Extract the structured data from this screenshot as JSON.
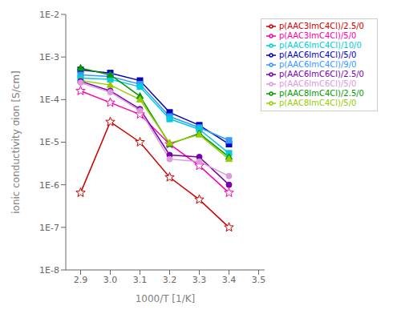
{
  "chart_data": {
    "type": "line",
    "title": null,
    "xlabel": "1000/T [1/K]",
    "ylabel": "ionic conductivity σion [S/cm]",
    "x": [
      2.9,
      3.0,
      3.1,
      3.2,
      3.3,
      3.4
    ],
    "series": [
      {
        "name": "p(AAC3ImC4Cl)/2.5/0",
        "color": "#cc0000",
        "marker": "star",
        "values": [
          6.5e-07,
          3e-05,
          1e-05,
          1.5e-06,
          4.5e-07,
          1e-07
        ]
      },
      {
        "name": "p(AAC3ImC4Cl)/5/0",
        "color": "#ff00aa",
        "marker": "star",
        "values": [
          0.00016,
          8.5e-05,
          4.5e-05,
          9e-06,
          2.8e-06,
          6.5e-07
        ]
      },
      {
        "name": "p(AAC6ImC4Cl)/5/0",
        "color": "#0000bb",
        "marker": "square",
        "values": [
          0.0005,
          0.00042,
          0.00028,
          5e-05,
          2.5e-05,
          9e-06
        ]
      },
      {
        "name": "p(AAC6ImC4Cl)/9/0",
        "color": "#3399ff",
        "marker": "square",
        "values": [
          0.00038,
          0.00035,
          0.00023,
          4e-05,
          2.2e-05,
          1.1e-05
        ]
      },
      {
        "name": "p(AAC6ImC4Cl)/10/0",
        "color": "#00ccdd",
        "marker": "square",
        "values": [
          0.00032,
          0.0003,
          0.0002,
          3.5e-05,
          2e-05,
          5.5e-06
        ]
      },
      {
        "name": "p(AAC8ImC4Cl)/2.5/0",
        "color": "#009900",
        "marker": "triangle",
        "values": [
          0.00055,
          0.00038,
          0.00012,
          9e-06,
          1.6e-05,
          4.5e-06
        ]
      },
      {
        "name": "p(AAC8ImC4Cl)/5/0",
        "color": "#99cc00",
        "marker": "triangle",
        "values": [
          0.00028,
          0.00022,
          0.0001,
          9.5e-06,
          1.5e-05,
          4e-06
        ]
      },
      {
        "name": "p(AAC6ImC6Cl)/2.5/0",
        "color": "#7700aa",
        "marker": "circle",
        "values": [
          0.00027,
          0.00016,
          6e-05,
          5e-06,
          4.5e-06,
          1e-06
        ]
      },
      {
        "name": "p(AAC6ImC6Cl)/5/0",
        "color": "#dd99dd",
        "marker": "circle",
        "values": [
          0.00025,
          0.00015,
          5.5e-05,
          4e-06,
          3.5e-06,
          1.6e-06
        ]
      }
    ],
    "xlim": [
      2.85,
      3.52
    ],
    "xticks": [
      2.9,
      {
        "value": 3.0,
        "label": "3.0"
      },
      3.1,
      3.2,
      3.3,
      3.4,
      3.5
    ],
    "ylim": [
      1e-08,
      0.01
    ],
    "yticks": [
      {
        "value": 1e-08,
        "label": "1E-8"
      },
      {
        "value": 1e-07,
        "label": "1E-7"
      },
      {
        "value": 1e-06,
        "label": "1E-6"
      },
      {
        "value": 1e-05,
        "label": "1E-5"
      },
      {
        "value": 0.0001,
        "label": "1E-4"
      },
      {
        "value": 0.001,
        "label": "1E-3"
      },
      {
        "value": 0.01,
        "label": "1E-2"
      }
    ],
    "log": "y",
    "grid": false,
    "legend": "upper right"
  }
}
